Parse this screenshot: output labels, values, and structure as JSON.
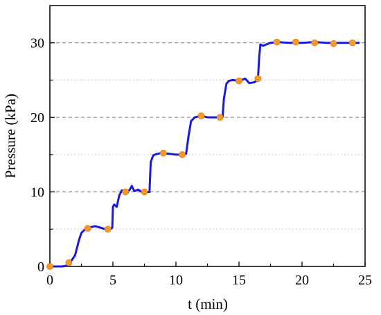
{
  "chart_data": {
    "type": "line",
    "title": "",
    "xlabel": "t (min)",
    "ylabel": "Pressure (kPa)",
    "xlim": [
      0,
      25
    ],
    "ylim": [
      0,
      35
    ],
    "xticks": [
      "0",
      "5",
      "10",
      "15",
      "20",
      "25"
    ],
    "yticks": [
      "0",
      "10",
      "20",
      "30"
    ],
    "grid": "horizontal dashed lines at 10, 20, 30; light dotted lines at 5, 15, 25",
    "legend": "none",
    "colors": {
      "line": "#1a1adc",
      "markers": "#f39a2a",
      "grid_major": "#7a7a7a",
      "grid_minor": "#c8c8c8"
    },
    "series": [
      {
        "kind": "line",
        "x": [
          0,
          1.0,
          1.3,
          1.6,
          2.0,
          2.3,
          2.5,
          2.8,
          3.0,
          3.3,
          3.6,
          4.0,
          4.4,
          4.8,
          4.95,
          5.0,
          5.1,
          5.3,
          5.5,
          5.7,
          6.0,
          6.3,
          6.5,
          6.7,
          7.0,
          7.3,
          7.6,
          7.9,
          7.95,
          8.0,
          8.2,
          8.5,
          8.8,
          9.0,
          9.5,
          10.0,
          10.5,
          10.8,
          11.0,
          11.2,
          11.5,
          12.0,
          12.5,
          13.0,
          13.5,
          13.7,
          13.8,
          14.0,
          14.2,
          14.5,
          15.0,
          15.5,
          15.8,
          16.2,
          16.5,
          16.6,
          16.7,
          16.9,
          17.2,
          17.5,
          18.0,
          19.0,
          20.0,
          21.0,
          22.0,
          23.0,
          24.0,
          24.5
        ],
        "y": [
          0,
          0,
          0.1,
          0.5,
          1.5,
          3.5,
          4.5,
          5.0,
          5.1,
          5.3,
          5.4,
          5.2,
          5.0,
          5.0,
          5.2,
          8.0,
          8.3,
          8.0,
          9.5,
          10.2,
          10.0,
          10.2,
          10.8,
          10.1,
          10.3,
          10.0,
          10.0,
          10.0,
          12.0,
          14.0,
          14.9,
          15.1,
          15.2,
          15.2,
          15.1,
          15.0,
          15.0,
          15.1,
          17.5,
          19.5,
          20.0,
          20.2,
          20.0,
          20.0,
          20.0,
          20.0,
          22.5,
          24.5,
          24.9,
          25.0,
          24.9,
          25.2,
          24.6,
          24.7,
          25.0,
          28.0,
          29.8,
          29.6,
          29.8,
          30.0,
          30.1,
          30.0,
          30.0,
          30.1,
          30.0,
          30.0,
          30.0,
          30.0
        ]
      },
      {
        "kind": "markers",
        "x": [
          0,
          1.5,
          3.0,
          4.6,
          6.0,
          7.5,
          9.0,
          10.5,
          12.0,
          13.5,
          15.0,
          16.5,
          18.0,
          19.5,
          21.0,
          22.5,
          24.0
        ],
        "y": [
          0,
          0.5,
          5.1,
          5.0,
          10.0,
          10.0,
          15.2,
          15.0,
          20.2,
          20.0,
          24.9,
          25.2,
          30.1,
          30.1,
          30.0,
          29.9,
          30.0
        ]
      }
    ]
  }
}
